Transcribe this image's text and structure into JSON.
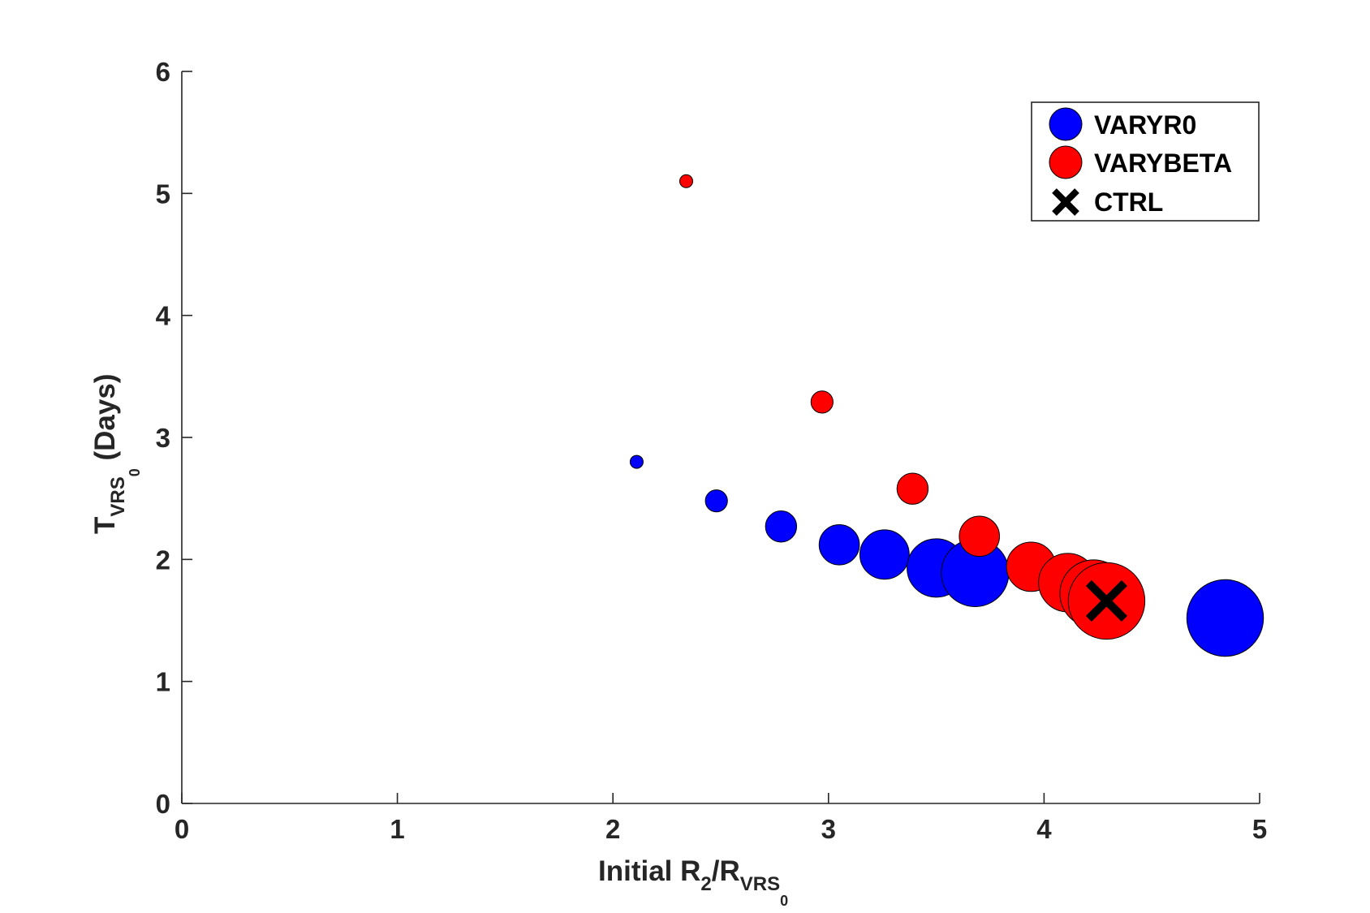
{
  "chart_data": {
    "type": "scatter",
    "xlim": [
      0,
      5
    ],
    "ylim": [
      0,
      6
    ],
    "x_ticks": [
      0,
      1,
      2,
      3,
      4,
      5
    ],
    "y_ticks": [
      0,
      1,
      2,
      3,
      4,
      5,
      6
    ],
    "xlabel": {
      "main": "Initial R",
      "sub1": "2",
      "mid": "/R",
      "sub2": "VRS",
      "subsub": "0"
    },
    "ylabel": {
      "main": "T",
      "sub": "VRS",
      "subsub": "0",
      "rest": " (Days)"
    },
    "grid": false,
    "legend_position": "top-right",
    "series": [
      {
        "name": "VARYR0",
        "color": "#0000ff",
        "marker": "circle",
        "points": [
          {
            "x": 2.11,
            "y": 2.8,
            "size": 1
          },
          {
            "x": 2.48,
            "y": 2.48,
            "size": 2
          },
          {
            "x": 2.78,
            "y": 2.27,
            "size": 3
          },
          {
            "x": 3.05,
            "y": 2.12,
            "size": 4
          },
          {
            "x": 3.26,
            "y": 2.04,
            "size": 5
          },
          {
            "x": 3.5,
            "y": 1.93,
            "size": 6
          },
          {
            "x": 3.68,
            "y": 1.89,
            "size": 7
          },
          {
            "x": 4.84,
            "y": 1.52,
            "size": 8
          }
        ]
      },
      {
        "name": "VARYBETA",
        "color": "#ff0000",
        "marker": "circle",
        "points": [
          {
            "x": 2.34,
            "y": 5.1,
            "size": 1
          },
          {
            "x": 2.97,
            "y": 3.29,
            "size": 2
          },
          {
            "x": 3.39,
            "y": 2.58,
            "size": 3
          },
          {
            "x": 3.7,
            "y": 2.19,
            "size": 4
          },
          {
            "x": 3.94,
            "y": 1.94,
            "size": 5
          },
          {
            "x": 4.11,
            "y": 1.81,
            "size": 6
          },
          {
            "x": 4.23,
            "y": 1.72,
            "size": 7
          },
          {
            "x": 4.29,
            "y": 1.66,
            "size": 8
          }
        ]
      },
      {
        "name": "CTRL",
        "color": "#000000",
        "marker": "x",
        "points": [
          {
            "x": 4.29,
            "y": 1.66
          }
        ]
      }
    ]
  }
}
